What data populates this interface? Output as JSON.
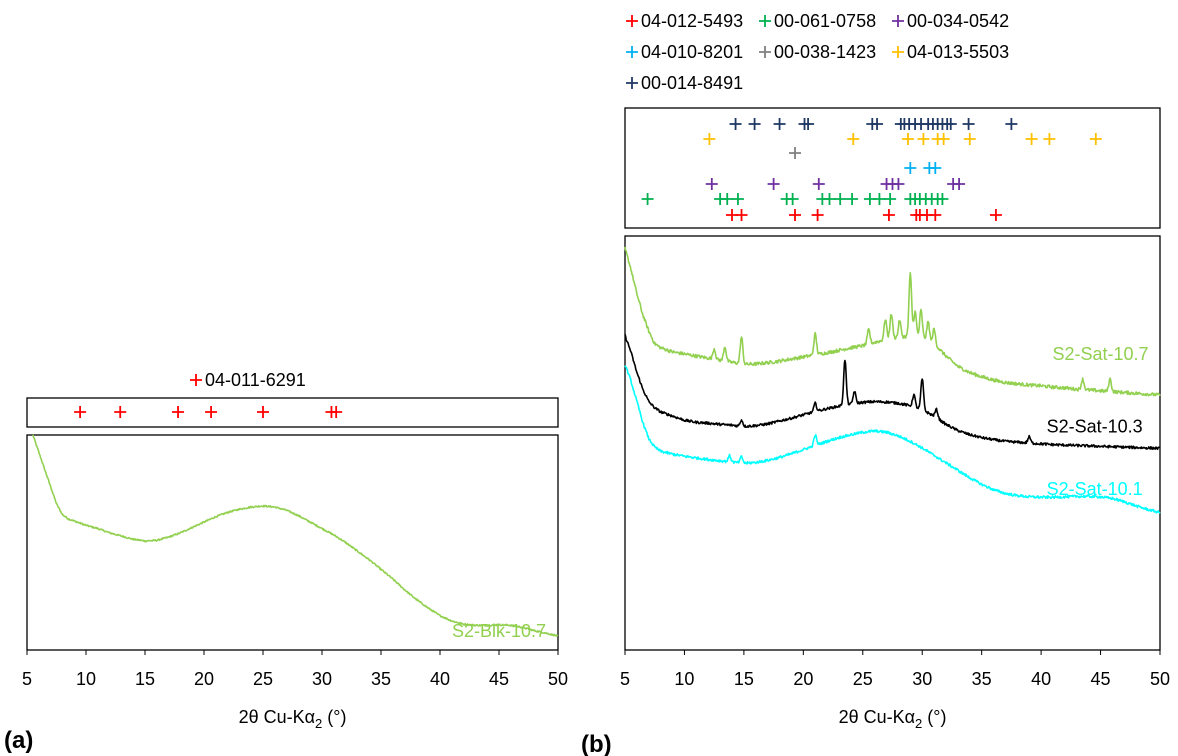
{
  "panel_labels": {
    "a": "(a)",
    "b": "(b)"
  },
  "chart_data": [
    {
      "id": "a",
      "type": "line",
      "panel_label": "(a)",
      "xlabel": "2θ Cu-Kα",
      "xlabel_sub": "2",
      "xlabel_unit": " (°)",
      "xlim": [
        5,
        50
      ],
      "xticks": [
        5,
        10,
        15,
        20,
        25,
        30,
        35,
        40,
        45,
        50
      ],
      "y_axis_labels": false,
      "grid": false,
      "reference_patterns": [
        {
          "name": "04-011-6291",
          "color": "#ff0000",
          "peaks": [
            9.5,
            12.9,
            17.8,
            20.6,
            25.0,
            30.8,
            31.2
          ]
        }
      ],
      "series": [
        {
          "name": "S2-Blk-10.7",
          "color": "#92d050",
          "label_at": [
            45,
            6
          ],
          "noise": 0.35,
          "x": [
            5.5,
            6.0,
            6.5,
            7.0,
            7.5,
            8.0,
            8.5,
            9,
            10,
            11,
            12,
            13,
            14,
            15,
            16,
            17,
            18,
            19,
            20,
            21,
            22,
            23,
            24,
            25,
            26,
            27,
            28,
            29,
            30,
            31,
            32,
            33,
            34,
            35,
            36,
            37,
            38,
            39,
            40,
            41,
            42,
            43,
            44,
            45,
            46,
            47,
            48,
            49,
            50
          ],
          "y": [
            100,
            92,
            84,
            76,
            68,
            63,
            61,
            60,
            58,
            56.5,
            54.5,
            53,
            51.5,
            50.7,
            51,
            52.5,
            54.5,
            57,
            59.5,
            62,
            64,
            65.5,
            66.5,
            67,
            66.5,
            65,
            62.5,
            59.5,
            56.5,
            53.5,
            50,
            46,
            42,
            37.5,
            33,
            28,
            23.5,
            19.5,
            16,
            13.5,
            12,
            11.5,
            11.5,
            11.7,
            11.5,
            10.5,
            9,
            7.8,
            6.5
          ]
        }
      ]
    },
    {
      "id": "b",
      "type": "line",
      "panel_label": "(b)",
      "xlabel": "2θ Cu-Kα",
      "xlabel_sub": "2",
      "xlabel_unit": " (°)",
      "xlim": [
        5,
        50
      ],
      "xticks": [
        5,
        10,
        15,
        20,
        25,
        30,
        35,
        40,
        45,
        50
      ],
      "y_axis_labels": false,
      "grid": false,
      "legend_position": "top",
      "reference_patterns": [
        {
          "name": "04-012-5493",
          "color": "#ff0000",
          "peaks": [
            14.0,
            14.8,
            19.3,
            21.2,
            27.2,
            29.5,
            29.8,
            30.4,
            31.1,
            36.2
          ]
        },
        {
          "name": "00-061-0758",
          "color": "#00b050",
          "peaks": [
            6.9,
            13.0,
            13.6,
            14.5,
            18.6,
            19.1,
            21.6,
            22.2,
            23.1,
            24.1,
            25.6,
            26.4,
            27.3,
            29.0,
            29.4,
            29.8,
            30.3,
            30.8,
            31.3,
            31.7
          ]
        },
        {
          "name": "00-034-0542",
          "color": "#7030a0",
          "peaks": [
            12.3,
            17.5,
            21.3,
            27.0,
            27.5,
            28.0,
            32.6,
            33.1
          ]
        },
        {
          "name": "04-010-8201",
          "color": "#00b0f0",
          "peaks": [
            29.0,
            30.6,
            31.1
          ]
        },
        {
          "name": "00-038-1423",
          "color": "#808080",
          "peaks": [
            19.3
          ]
        },
        {
          "name": "04-013-5503",
          "color": "#ffc000",
          "peaks": [
            12.1,
            24.2,
            28.8,
            30.1,
            31.3,
            31.8,
            34.0,
            39.2,
            40.7,
            44.6
          ]
        },
        {
          "name": "00-014-8491",
          "color": "#1f3864",
          "peaks": [
            14.3,
            15.9,
            18.0,
            20.1,
            20.4,
            25.8,
            26.2,
            28.2,
            28.5,
            28.9,
            29.4,
            29.9,
            30.5,
            30.9,
            31.3,
            31.7,
            32.1,
            32.4,
            33.9,
            37.5
          ]
        }
      ],
      "series": [
        {
          "name": "S2-Sat-10.7",
          "color": "#92d050",
          "label_at": [
            45,
            70
          ],
          "noise": 0.4,
          "x": [
            5,
            5.5,
            6,
            6.5,
            7,
            7.5,
            8,
            9,
            10,
            11,
            12,
            13,
            14,
            15,
            16,
            17,
            18,
            19,
            20,
            21,
            22,
            23,
            24,
            25,
            26,
            27,
            28,
            29,
            30,
            31,
            32,
            33,
            34,
            35,
            36,
            37,
            38,
            39,
            40,
            41,
            42,
            43,
            44,
            45,
            46,
            47,
            48,
            49,
            50
          ],
          "y": [
            97,
            92,
            86,
            81,
            77,
            74,
            73,
            72,
            71.5,
            71,
            70.5,
            70,
            69.5,
            69,
            69.1,
            69.4,
            69.8,
            70.3,
            70.8,
            71.3,
            71.8,
            72.4,
            73,
            73.5,
            74.3,
            75,
            75.5,
            75.8,
            75.5,
            74,
            71,
            68.5,
            67,
            66,
            65.2,
            64.6,
            64.3,
            64,
            63.8,
            63.5,
            63.3,
            63,
            62.8,
            62.6,
            62.4,
            62.2,
            62,
            61.8,
            61.6
          ],
          "peaks": [
            [
              12.5,
              2.5
            ],
            [
              13.4,
              3.5
            ],
            [
              14.8,
              6.5
            ],
            [
              21.0,
              5
            ],
            [
              25.5,
              3.5
            ],
            [
              26.9,
              5
            ],
            [
              27.4,
              6
            ],
            [
              28.1,
              4
            ],
            [
              29.0,
              15
            ],
            [
              29.4,
              6
            ],
            [
              29.9,
              6.5
            ],
            [
              30.5,
              4.5
            ],
            [
              31.0,
              3.5
            ],
            [
              43.5,
              2.5
            ],
            [
              45.8,
              3
            ]
          ]
        },
        {
          "name": "S2-Sat-10.3",
          "color": "#000000",
          "label_at": [
            44.5,
            52.5
          ],
          "noise": 0.3,
          "x": [
            5,
            5.5,
            6,
            6.5,
            7,
            7.5,
            8,
            9,
            10,
            11,
            12,
            13,
            14,
            15,
            16,
            17,
            18,
            19,
            20,
            21,
            22,
            23,
            24,
            25,
            26,
            27,
            28,
            29,
            30,
            31,
            32,
            33,
            34,
            35,
            36,
            37,
            38,
            39,
            40,
            41,
            42,
            43,
            44,
            45,
            46,
            47,
            48,
            49,
            50
          ],
          "y": [
            76,
            72,
            67,
            63,
            60,
            58.5,
            57.5,
            56.5,
            55.5,
            55,
            54.8,
            54.5,
            54.3,
            54,
            54.2,
            54.6,
            55.3,
            56,
            56.8,
            57.6,
            58.3,
            58.9,
            59.4,
            59.8,
            60,
            59.9,
            59.6,
            59,
            58,
            56.5,
            54.5,
            53,
            52,
            51.3,
            50.8,
            50.4,
            50.2,
            50,
            49.8,
            49.6,
            49.5,
            49.4,
            49.3,
            49.2,
            49.1,
            49,
            48.9,
            48.8,
            48.7
          ],
          "peaks": [
            [
              14.8,
              1.5
            ],
            [
              21.0,
              2
            ],
            [
              23.5,
              11
            ],
            [
              24.3,
              3
            ],
            [
              29.3,
              3
            ],
            [
              30.0,
              7.5
            ],
            [
              31.2,
              2
            ],
            [
              39.0,
              1.5
            ]
          ]
        },
        {
          "name": "S2-Sat-10.1",
          "color": "#00ffff",
          "label_at": [
            44.5,
            37.5
          ],
          "noise": 0.3,
          "x": [
            5,
            5.5,
            6,
            6.5,
            7,
            7.5,
            8,
            9,
            10,
            11,
            12,
            13,
            14,
            15,
            16,
            17,
            18,
            19,
            20,
            21,
            22,
            23,
            24,
            25,
            26,
            27,
            28,
            29,
            30,
            31,
            32,
            33,
            34,
            35,
            36,
            37,
            38,
            39,
            40,
            41,
            42,
            43,
            44,
            45,
            46,
            47,
            48,
            49,
            50
          ],
          "y": [
            69,
            65,
            60,
            55,
            51,
            49,
            48,
            47.3,
            46.8,
            46.4,
            46,
            45.7,
            45.4,
            45.1,
            45.3,
            45.8,
            46.5,
            47.4,
            48.4,
            49.4,
            50.4,
            51.3,
            52,
            52.6,
            52.9,
            52.6,
            51.7,
            50.4,
            48.8,
            47,
            45.2,
            43.4,
            41.6,
            40,
            38.7,
            37.8,
            37.3,
            37,
            36.9,
            36.9,
            37,
            37.1,
            37.1,
            37,
            36.6,
            35.8,
            34.8,
            33.9,
            33.2
          ],
          "peaks": [
            [
              13.8,
              1.5
            ],
            [
              14.8,
              1.5
            ],
            [
              21.0,
              2.5
            ]
          ]
        }
      ]
    }
  ]
}
